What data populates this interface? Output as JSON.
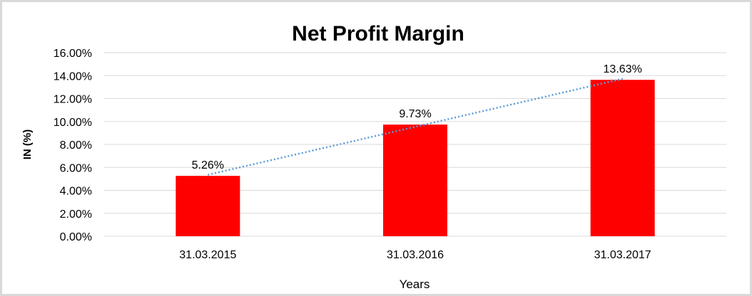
{
  "chart_data": {
    "type": "bar",
    "title": "Net Profit Margin",
    "xlabel": "Years",
    "ylabel": "IN (%)",
    "categories": [
      "31.03.2015",
      "31.03.2016",
      "31.03.2017"
    ],
    "values": [
      5.26,
      9.73,
      13.63
    ],
    "data_labels": [
      "5.26%",
      "9.73%",
      "13.63%"
    ],
    "ylim": [
      0,
      16
    ],
    "yticks": [
      0,
      2,
      4,
      6,
      8,
      10,
      12,
      14,
      16
    ],
    "ytick_labels": [
      "0.00%",
      "2.00%",
      "4.00%",
      "6.00%",
      "8.00%",
      "10.00%",
      "12.00%",
      "14.00%",
      "16.00%"
    ],
    "grid": true,
    "legend": "none",
    "trendline": {
      "type": "linear",
      "style": "dotted",
      "color": "#5b9bd5"
    },
    "colors": {
      "bar": "#ff0000",
      "grid": "#d9d9d9",
      "border": "#d9d9d9"
    }
  }
}
